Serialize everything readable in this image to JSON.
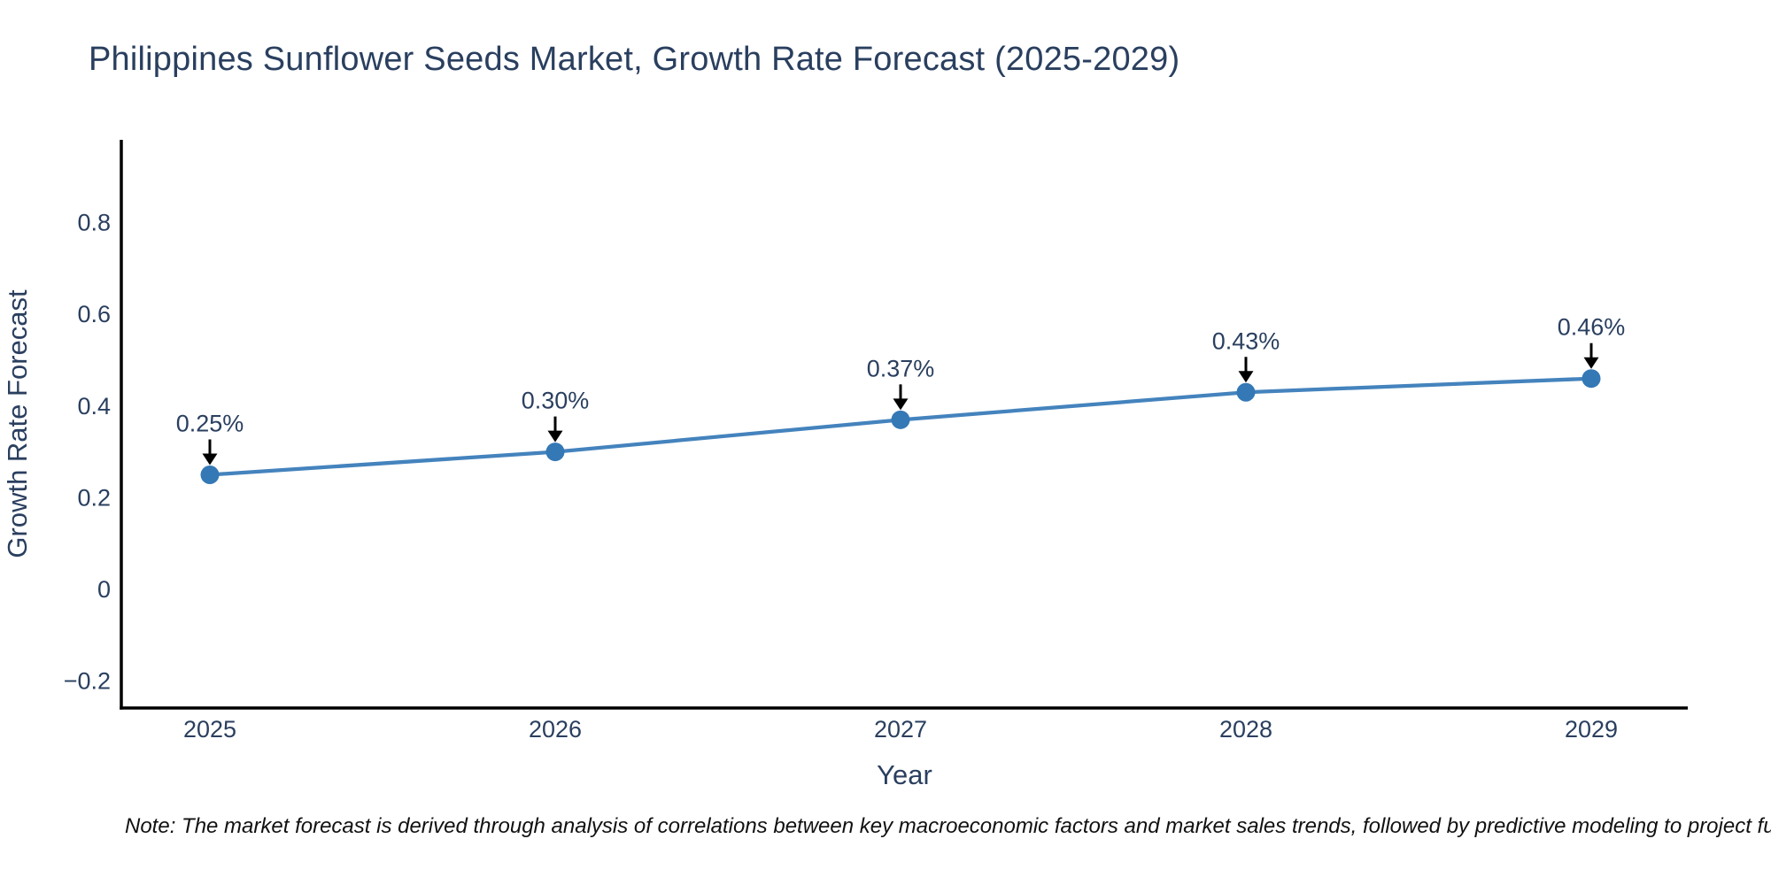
{
  "page": {
    "title": "Philippines Sunflower Seeds Market, Growth Rate Forecast (2025-2029)",
    "note": "Note: The market forecast is derived through analysis of correlations between key macroeconomic factors and market sales trends, followed by predictive modeling to project future sa"
  },
  "chart_data": {
    "type": "line",
    "title": "Philippines Sunflower Seeds Market, Growth Rate Forecast (2025-2029)",
    "xlabel": "Year",
    "ylabel": "Growth Rate Forecast",
    "categories": [
      "2025",
      "2026",
      "2027",
      "2028",
      "2029"
    ],
    "series": [
      {
        "name": "Growth Rate Forecast",
        "values": [
          0.25,
          0.3,
          0.37,
          0.43,
          0.46
        ],
        "point_labels": [
          "0.25%",
          "0.30%",
          "0.37%",
          "0.43%",
          "0.46%"
        ]
      }
    ],
    "y_ticks": [
      {
        "value": 0.8,
        "label": "0.8"
      },
      {
        "value": 0.6,
        "label": "0.6"
      },
      {
        "value": 0.4,
        "label": "0.4"
      },
      {
        "value": 0.2,
        "label": "0.2"
      },
      {
        "value": 0,
        "label": "0"
      },
      {
        "value": -0.2,
        "label": "−0.2"
      }
    ],
    "ylim": [
      -0.26,
      1.04
    ],
    "grid": false,
    "legend": "none",
    "annotation_style": "arrow-down",
    "colors": {
      "line": "#4483bd",
      "marker": "#3478b6",
      "axis": "#000000",
      "tick_text": "#2a3f5f",
      "title_text": "#2a3f5f",
      "annotation_text": "#2a3f5f",
      "arrow": "#000000",
      "note_text": "#111111",
      "background": "#ffffff"
    }
  }
}
